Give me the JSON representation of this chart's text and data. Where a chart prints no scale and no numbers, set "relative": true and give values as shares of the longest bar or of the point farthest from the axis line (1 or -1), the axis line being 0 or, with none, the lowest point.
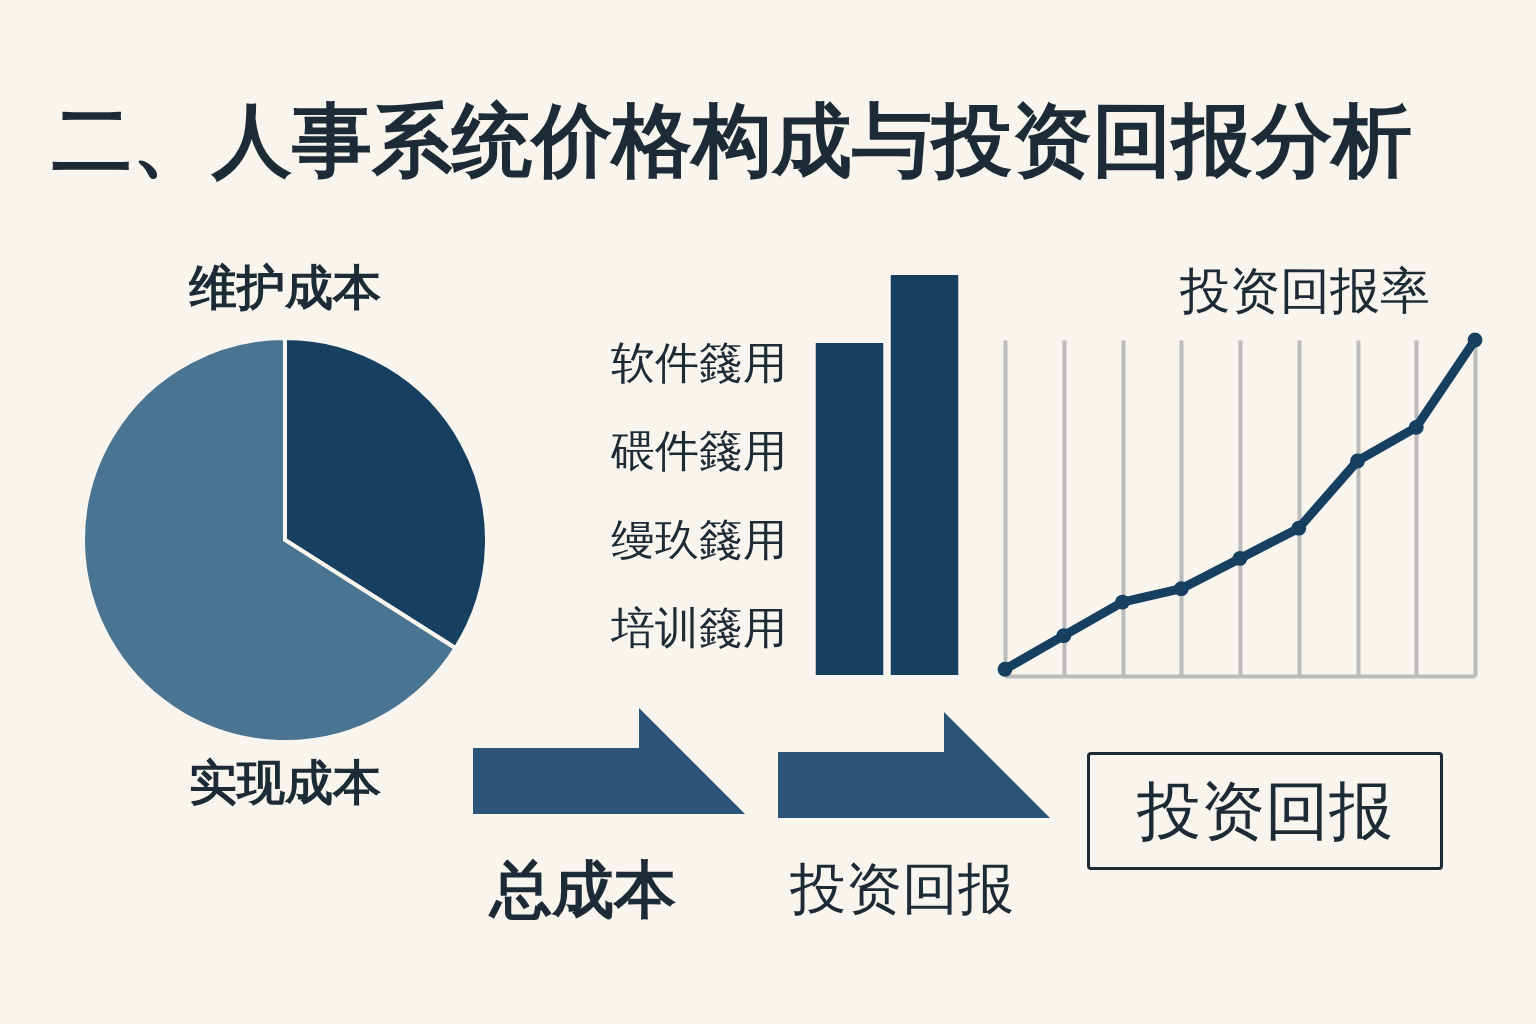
{
  "chart_data": [
    {
      "type": "pie",
      "categories": [
        "维护成本",
        "实现成本"
      ],
      "values": [
        34,
        66
      ],
      "colors": [
        "#163f60",
        "#4a7592"
      ]
    },
    {
      "type": "bar",
      "relative": true,
      "categories": [
        null,
        null
      ],
      "values": [
        0.83,
        1
      ],
      "color": "#163f60",
      "annotations": [
        "软件籛用",
        "碨件籛用",
        "缦玖籛用",
        "培训籛用"
      ]
    },
    {
      "type": "line",
      "title": "投资回报率",
      "relative": true,
      "categories": [
        null,
        null,
        null,
        null,
        null,
        null,
        null,
        null,
        null
      ],
      "values": [
        0.02,
        0.12,
        0.22,
        0.26,
        0.35,
        0.44,
        0.64,
        0.74,
        1
      ],
      "color": "#163f60",
      "marker": "circle",
      "grid": "x"
    },
    {
      "type": "other",
      "title": "二、人事系统价格构成与投资回报分析",
      "annotations": [
        "总成本",
        "投资回报",
        "投资回报"
      ]
    }
  ]
}
